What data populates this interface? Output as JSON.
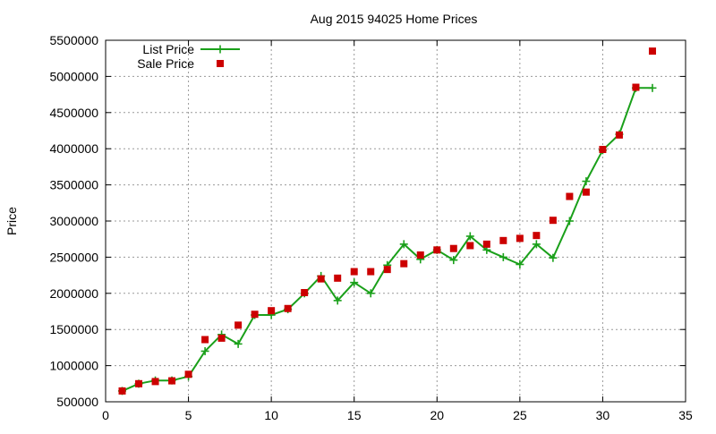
{
  "chart_data": {
    "type": "line",
    "title": "Aug 2015 94025 Home Prices",
    "xlabel": "",
    "ylabel": "Price",
    "xlim": [
      0,
      35
    ],
    "ylim": [
      500000,
      5500000
    ],
    "xticks": [
      "0",
      "5",
      "10",
      "15",
      "20",
      "25",
      "30",
      "35"
    ],
    "yticks": [
      "500000",
      "1000000",
      "1500000",
      "2000000",
      "2500000",
      "3000000",
      "3500000",
      "4000000",
      "4500000",
      "5000000",
      "5500000"
    ],
    "grid": true,
    "legend_position": "top-left",
    "series": [
      {
        "name": "List Price",
        "style": "line-plus",
        "color": "#1aa01a",
        "points": [
          [
            1,
            650000
          ],
          [
            2,
            750000
          ],
          [
            3,
            795000
          ],
          [
            4,
            795000
          ],
          [
            5,
            850000
          ],
          [
            6,
            1200000
          ],
          [
            7,
            1430000
          ],
          [
            8,
            1300000
          ],
          [
            9,
            1700000
          ],
          [
            10,
            1700000
          ],
          [
            11,
            1780000
          ],
          [
            12,
            2000000
          ],
          [
            13,
            2240000
          ],
          [
            14,
            1900000
          ],
          [
            15,
            2150000
          ],
          [
            16,
            2000000
          ],
          [
            17,
            2390000
          ],
          [
            18,
            2680000
          ],
          [
            19,
            2470000
          ],
          [
            20,
            2600000
          ],
          [
            21,
            2460000
          ],
          [
            22,
            2790000
          ],
          [
            23,
            2600000
          ],
          [
            24,
            2500000
          ],
          [
            25,
            2400000
          ],
          [
            26,
            2680000
          ],
          [
            27,
            2490000
          ],
          [
            28,
            3000000
          ],
          [
            29,
            3550000
          ],
          [
            30,
            3980000
          ],
          [
            31,
            4200000
          ],
          [
            32,
            4840000
          ],
          [
            33,
            4840000
          ]
        ]
      },
      {
        "name": "Sale Price",
        "style": "square",
        "color": "#cc0000",
        "points": [
          [
            1,
            650000
          ],
          [
            2,
            750000
          ],
          [
            3,
            780000
          ],
          [
            4,
            790000
          ],
          [
            5,
            880000
          ],
          [
            6,
            1360000
          ],
          [
            7,
            1380000
          ],
          [
            8,
            1560000
          ],
          [
            9,
            1710000
          ],
          [
            10,
            1760000
          ],
          [
            11,
            1790000
          ],
          [
            12,
            2010000
          ],
          [
            13,
            2200000
          ],
          [
            14,
            2210000
          ],
          [
            15,
            2300000
          ],
          [
            16,
            2300000
          ],
          [
            17,
            2330000
          ],
          [
            18,
            2410000
          ],
          [
            19,
            2530000
          ],
          [
            20,
            2600000
          ],
          [
            21,
            2620000
          ],
          [
            22,
            2660000
          ],
          [
            23,
            2680000
          ],
          [
            24,
            2730000
          ],
          [
            25,
            2760000
          ],
          [
            26,
            2800000
          ],
          [
            27,
            3010000
          ],
          [
            28,
            3340000
          ],
          [
            29,
            3400000
          ],
          [
            30,
            3990000
          ],
          [
            31,
            4190000
          ],
          [
            32,
            4850000
          ],
          [
            33,
            5350000
          ]
        ]
      }
    ]
  }
}
